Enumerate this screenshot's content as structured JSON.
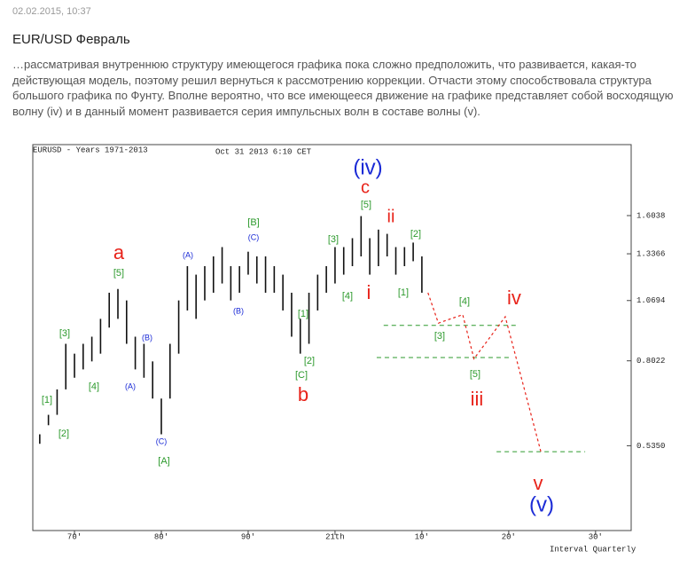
{
  "header": {
    "date": "02.02.2015, 10:37",
    "title": "EUR/USD Февраль"
  },
  "body": {
    "paragraph": "…рассматривая внутреннюю структуру имеющегося графика пока сложно предположить, что развивается, какая-то действующая модель, поэтому решил вернуться к рассмотрению коррекции. Отчасти этому способствовала структура большого графика по Фунту. Вполне вероятно, что все имеющееся движение на графике представляет собой восходящую волну (iv) и в данный момент развивается серия импульсных волн в составе волны (v)."
  },
  "chart_data": {
    "type": "range",
    "title": "EURUSD - Years 1971-2013",
    "subtitle": "Oct 31 2013 6:10 CET",
    "interval": "Interval Quarterly",
    "color": "#111111",
    "log_y": true,
    "x": [
      1966,
      1967,
      1968,
      1969,
      1970,
      1971,
      1972,
      1973,
      1974,
      1975,
      1976,
      1977,
      1978,
      1979,
      1980,
      1981,
      1982,
      1983,
      1984,
      1985,
      1986,
      1987,
      1988,
      1989,
      1990,
      1991,
      1992,
      1993,
      1994,
      1995,
      1996,
      1997,
      1998,
      1999,
      2000,
      2001,
      2002,
      2003,
      2004,
      2005,
      2006,
      2007,
      2008,
      2009,
      2010
    ],
    "high": [
      0.565,
      0.62,
      0.7,
      0.87,
      0.83,
      0.87,
      0.9,
      0.98,
      1.11,
      1.13,
      1.07,
      0.9,
      0.87,
      0.8,
      0.67,
      0.87,
      1.07,
      1.26,
      1.21,
      1.26,
      1.32,
      1.38,
      1.26,
      1.26,
      1.35,
      1.32,
      1.32,
      1.26,
      1.21,
      1.11,
      0.98,
      1.11,
      1.21,
      1.26,
      1.38,
      1.38,
      1.44,
      1.6,
      1.44,
      1.5,
      1.47,
      1.38,
      1.38,
      1.41,
      1.32
    ],
    "low": [
      0.54,
      0.59,
      0.62,
      0.7,
      0.74,
      0.77,
      0.8,
      0.83,
      0.94,
      0.98,
      0.87,
      0.77,
      0.74,
      0.67,
      0.565,
      0.67,
      0.83,
      1.02,
      0.98,
      1.07,
      1.11,
      1.16,
      1.07,
      1.11,
      1.21,
      1.16,
      1.11,
      1.11,
      1.02,
      0.9,
      0.83,
      0.87,
      1.02,
      1.11,
      1.16,
      1.21,
      1.26,
      1.32,
      1.21,
      1.26,
      1.32,
      1.21,
      1.26,
      1.29,
      1.11
    ],
    "xlim": [
      1965.2,
      2034.1
    ],
    "ylim": [
      0.357,
      2.25
    ],
    "xticks": [
      {
        "value": 1970,
        "label": "70'"
      },
      {
        "value": 1980,
        "label": "80'"
      },
      {
        "value": 1990,
        "label": "90'"
      },
      {
        "value": 2000,
        "label": "21th"
      },
      {
        "value": 2010,
        "label": "10'"
      },
      {
        "value": 2020,
        "label": "20'"
      },
      {
        "value": 2030,
        "label": "30'"
      }
    ],
    "yticks": [
      1.6038,
      1.3366,
      1.0694,
      0.8022,
      {
        "value": 0.535,
        "label": "0.5350"
      }
    ],
    "projection": {
      "color": "#e8231a",
      "x": [
        2010.7,
        2011.9,
        2014.7,
        2016.0,
        2019.6,
        2023.7
      ],
      "values": [
        1.11,
        0.96,
        1.0,
        0.81,
        0.99,
        0.52
      ]
    },
    "levels": [
      {
        "value": 0.95,
        "x": [
          2005.6,
          2020.9
        ]
      },
      {
        "value": 0.815,
        "x": [
          2004.8,
          2020.1
        ]
      },
      {
        "value": 0.52,
        "x": [
          2018.6,
          2028.8
        ]
      }
    ],
    "level_color": "#2d9a2d",
    "annotations": [
      {
        "text": "(iv)",
        "color": "#1a2ad6"
      },
      {
        "text": "c",
        "color": "#e8231a"
      },
      {
        "text": "[5]",
        "color": "#2d9a2d"
      },
      {
        "text": "ii",
        "color": "#e8231a"
      },
      {
        "text": "[2]",
        "color": "#2d9a2d"
      },
      {
        "text": "i",
        "color": "#e8231a"
      },
      {
        "text": "[1]",
        "color": "#2d9a2d"
      },
      {
        "text": "[4]",
        "color": "#2d9a2d"
      },
      {
        "text": "[3]",
        "color": "#2d9a2d"
      },
      {
        "text": "[B]",
        "color": "#2d9a2d"
      },
      {
        "text": "(C)",
        "color": "#1a2ad6"
      },
      {
        "text": "(A)",
        "color": "#1a2ad6"
      },
      {
        "text": "(B)",
        "color": "#1a2ad6"
      },
      {
        "text": "[1]",
        "color": "#2d9a2d"
      },
      {
        "text": "[2]",
        "color": "#2d9a2d"
      },
      {
        "text": "[C]",
        "color": "#2d9a2d"
      },
      {
        "text": "b",
        "color": "#e8231a"
      },
      {
        "text": "a",
        "color": "#e8231a"
      },
      {
        "text": "[5]",
        "color": "#2d9a2d"
      },
      {
        "text": "[3]",
        "color": "#2d9a2d"
      },
      {
        "text": "(B)",
        "color": "#1a2ad6"
      },
      {
        "text": "[4]",
        "color": "#2d9a2d"
      },
      {
        "text": "(A)",
        "color": "#1a2ad6"
      },
      {
        "text": "[1]",
        "color": "#2d9a2d"
      },
      {
        "text": "[2]",
        "color": "#2d9a2d"
      },
      {
        "text": "(C)",
        "color": "#1a2ad6"
      },
      {
        "text": "[A]",
        "color": "#2d9a2d"
      },
      {
        "text": "[4]",
        "color": "#2d9a2d"
      },
      {
        "text": "iv",
        "color": "#e8231a"
      },
      {
        "text": "[3]",
        "color": "#2d9a2d"
      },
      {
        "text": "[5]",
        "color": "#2d9a2d"
      },
      {
        "text": "iii",
        "color": "#e8231a"
      },
      {
        "text": "v",
        "color": "#e8231a"
      },
      {
        "text": "(v)",
        "color": "#1a2ad6"
      }
    ]
  }
}
